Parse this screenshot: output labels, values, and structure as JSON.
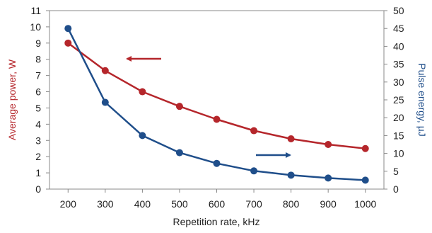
{
  "chart_data": {
    "type": "line",
    "xlabel": "Repetition rate, kHz",
    "ylabel_left": "Average power, W",
    "ylabel_right": "Pulse energy, µJ",
    "xlim": [
      150,
      1050
    ],
    "xticks": [
      200,
      300,
      400,
      500,
      600,
      700,
      800,
      900,
      1000
    ],
    "ylim_left": [
      0,
      11
    ],
    "yticks_left": [
      0,
      1,
      2,
      3,
      4,
      5,
      6,
      7,
      8,
      9,
      10,
      11
    ],
    "ylim_right": [
      0,
      50
    ],
    "yticks_right": [
      0,
      5,
      10,
      15,
      20,
      25,
      30,
      35,
      40,
      45,
      50
    ],
    "grid": false,
    "x": [
      200,
      300,
      400,
      500,
      600,
      700,
      800,
      900,
      1000
    ],
    "series": [
      {
        "axis": "left",
        "color": "#b5262b",
        "values": [
          9.0,
          7.3,
          6.0,
          5.1,
          4.3,
          3.6,
          3.1,
          2.75,
          2.5
        ]
      },
      {
        "axis": "right",
        "color": "#1f4e8a",
        "values": [
          45,
          24.3,
          15.0,
          10.2,
          7.2,
          5.1,
          3.9,
          3.1,
          2.5
        ]
      }
    ],
    "annotations": [
      {
        "type": "arrow",
        "direction": "left",
        "color": "#b5262b",
        "points_to": "left axis"
      },
      {
        "type": "arrow",
        "direction": "right",
        "color": "#1f4e8a",
        "points_to": "right axis"
      }
    ]
  }
}
